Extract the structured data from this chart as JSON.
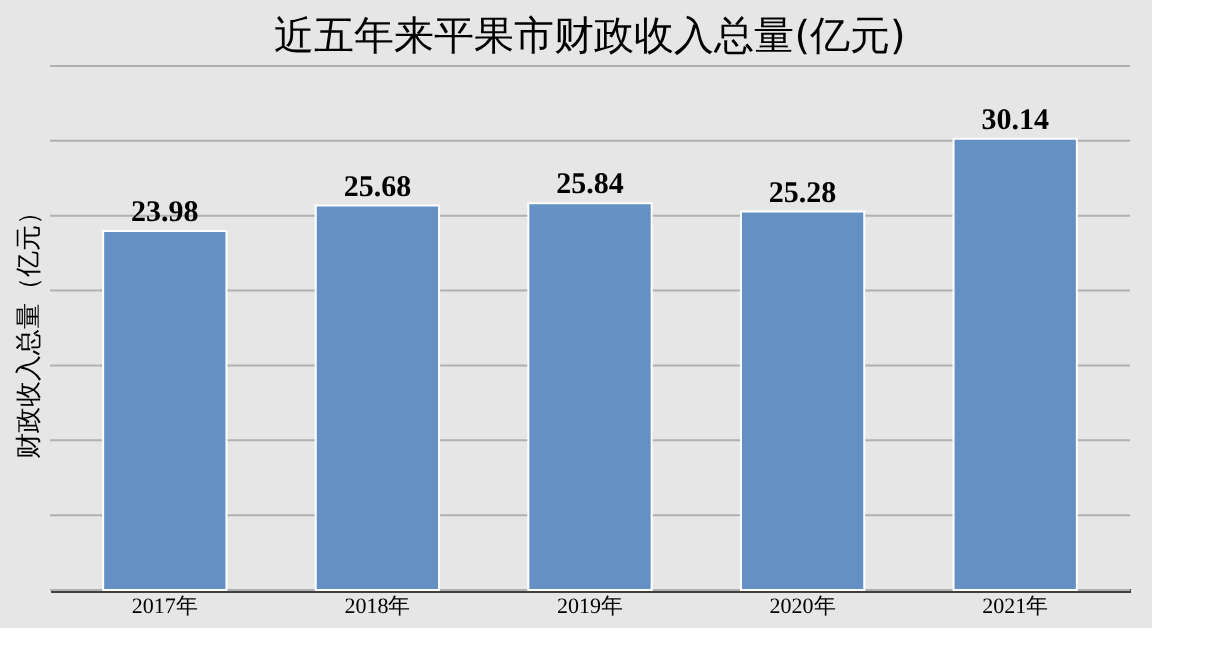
{
  "chart_data": {
    "type": "bar",
    "title": "近五年来平果市财政收入总量(亿元)",
    "ylabel": "财政收入总量（亿元）",
    "categories": [
      "2017年",
      "2018年",
      "2019年",
      "2020年",
      "2021年"
    ],
    "values": [
      23.98,
      25.68,
      25.84,
      25.28,
      30.14
    ],
    "color": "#6490c4",
    "ylim": [
      0,
      35
    ],
    "yticks": [
      {
        "value": 0,
        "label": null
      },
      {
        "value": 5,
        "label": null
      },
      {
        "value": 10,
        "label": null
      },
      {
        "value": 15,
        "label": null
      },
      {
        "value": 20,
        "label": null
      },
      {
        "value": 25,
        "label": null
      },
      {
        "value": 30,
        "label": null
      },
      {
        "value": 35,
        "label": null
      }
    ],
    "grid": "y",
    "data_labels": true,
    "tick_labels": "x"
  }
}
